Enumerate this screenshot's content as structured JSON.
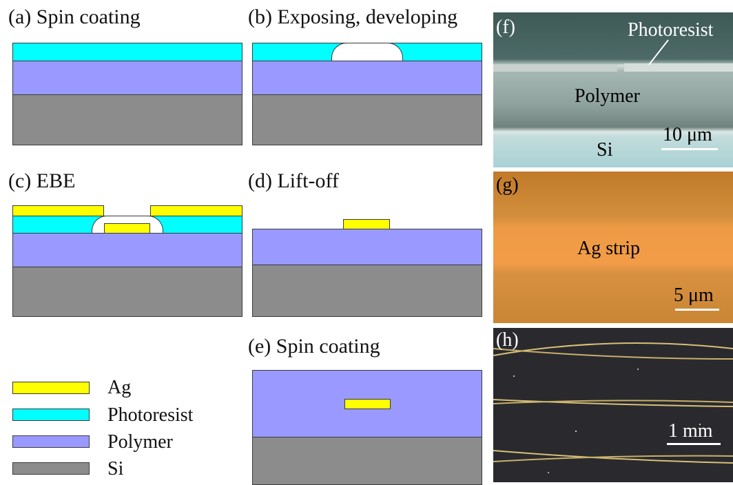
{
  "panels": {
    "a": {
      "title": "(a) Spin coating"
    },
    "b": {
      "title": "(b) Exposing, developing"
    },
    "c": {
      "title": "(c) EBE"
    },
    "d": {
      "title": "(d) Lift-off"
    },
    "e": {
      "title": "(e) Spin coating"
    }
  },
  "legend": [
    {
      "label": "Ag",
      "color": "#ffff00"
    },
    {
      "label": "Photoresist",
      "color": "#00ffff"
    },
    {
      "label": "Polymer",
      "color": "#9999ff"
    },
    {
      "label": "Si",
      "color": "#8c8c8c"
    }
  ],
  "photos": {
    "f": {
      "tag": "(f)",
      "photoresist": "Photoresist",
      "polymer": "Polymer",
      "si": "Si",
      "scale": "10 μm"
    },
    "g": {
      "tag": "(g)",
      "strip": "Ag strip",
      "scale": "5 μm"
    },
    "h": {
      "tag": "(h)",
      "scale": "1 mm"
    }
  },
  "colors": {
    "ag": "#ffff00",
    "photoresist": "#00ffff",
    "polymer": "#9999ff",
    "si": "#8c8c8c"
  }
}
